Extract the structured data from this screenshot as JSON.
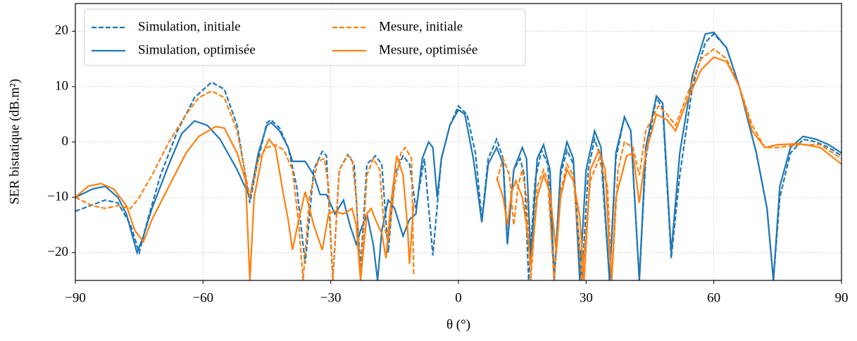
{
  "chart_data": {
    "type": "line",
    "xlabel": "θ (°)",
    "ylabel": "SER bistatique (dB.m²)",
    "xlim": [
      -90,
      90
    ],
    "ylim": [
      -25,
      25
    ],
    "xticks": [
      {
        "value": -90,
        "label": "−90"
      },
      {
        "value": -60,
        "label": "−60"
      },
      {
        "value": -30,
        "label": "−30"
      },
      0,
      30,
      60,
      90
    ],
    "yticks": [
      {
        "value": -20,
        "label": "−20"
      },
      {
        "value": -10,
        "label": "−10"
      },
      0,
      10,
      20
    ],
    "grid": true,
    "legend": "upper left",
    "series": [
      {
        "name": "Simulation, initiale",
        "color": "#1f77b4",
        "linestyle": "dashed",
        "x": [
          -90,
          -83,
          -80,
          -77,
          -75,
          -73,
          -70,
          -66,
          -62,
          -58,
          -55,
          -52,
          -49,
          -47,
          -45,
          -44,
          -42,
          -40,
          -38,
          -36,
          -34,
          -32,
          -31,
          -29.5,
          -28,
          -26,
          -24.5,
          -23,
          -21.5,
          -19.5,
          -18,
          -16.5,
          -15,
          -13,
          -11.5,
          -10,
          -8,
          -6,
          -4,
          -2,
          0,
          2,
          4,
          5.5,
          7,
          9,
          10.5,
          11.5,
          13,
          14.5,
          15.5,
          16.5,
          18,
          19.5,
          21,
          22.5,
          24,
          25.5,
          27,
          29,
          30.5,
          32,
          33.5,
          35.5,
          37,
          39,
          40.5,
          42.5,
          44,
          46.5,
          48,
          50,
          52,
          55,
          58,
          60,
          63,
          66,
          70,
          72.5,
          74,
          75.5,
          78,
          81,
          84,
          87,
          90
        ],
        "values": [
          -12.5,
          -10.5,
          -11,
          -15,
          -20,
          -14,
          -6,
          2,
          8,
          10.8,
          9.5,
          3,
          -11,
          -3,
          3.5,
          4,
          2.5,
          -1,
          -8,
          -22,
          -5,
          -1.7,
          -2.5,
          -25,
          -5,
          -2.3,
          -4,
          -23,
          -4,
          -2.5,
          -4,
          -20,
          -6,
          -2.5,
          -4,
          -12,
          -3,
          -20.5,
          -3,
          3,
          6.5,
          5,
          -2,
          -14,
          -3,
          0.5,
          -3,
          -18,
          -5,
          -3,
          -6,
          -25,
          -7,
          -1.5,
          -4,
          -25,
          -6,
          -1.5,
          -4,
          -25,
          -5,
          0.5,
          -3,
          -25,
          -3,
          4.5,
          2,
          -25,
          -3,
          8,
          6,
          -21,
          -6,
          10,
          18,
          19.5,
          17,
          10,
          -2,
          -12,
          -25,
          -10,
          -2,
          0.5,
          0,
          -1,
          -2.5
        ]
      },
      {
        "name": "Simulation, optimisée",
        "color": "#1f77b4",
        "linestyle": "solid",
        "x": [
          -90,
          -86,
          -83,
          -80,
          -78,
          -75.5,
          -74,
          -72,
          -68,
          -65,
          -62,
          -59,
          -56,
          -52,
          -49,
          -47,
          -45,
          -44,
          -42,
          -40,
          -39,
          -36,
          -34,
          -32.5,
          -31,
          -29,
          -27,
          -25.5,
          -24,
          -23,
          -21.5,
          -20,
          -19,
          -18,
          -16.5,
          -15,
          -13,
          -11.5,
          -10,
          -8.5,
          -7,
          -6,
          -5,
          -4,
          -2,
          0,
          1.5,
          3.5,
          5.5,
          7,
          9,
          10.5,
          11.5,
          13,
          15,
          16,
          17,
          18.5,
          20,
          21.5,
          22.5,
          24,
          25.5,
          27,
          28.5,
          30,
          32,
          33.5,
          35.5,
          37,
          39,
          40.5,
          42.5,
          44,
          46.5,
          48,
          50,
          52,
          55,
          58,
          60,
          63,
          66,
          70,
          72.5,
          74,
          75.5,
          78,
          81,
          84,
          87,
          90
        ],
        "values": [
          -10,
          -8.5,
          -8,
          -10,
          -13,
          -20,
          -17,
          -12,
          -4,
          1.5,
          3.8,
          3,
          0.5,
          -5,
          -10,
          -2,
          3,
          3.5,
          2,
          -1,
          -3.5,
          -3.5,
          -6,
          -9.5,
          -9.5,
          -13,
          -10.5,
          -15,
          -18.5,
          -16,
          -13,
          -18.5,
          -25,
          -16,
          -10.5,
          -12,
          -17,
          -14,
          -13,
          -3,
          0,
          -1,
          -10,
          -3,
          3,
          5.8,
          5,
          -3,
          -14.5,
          -4,
          -1,
          -4,
          -18.5,
          -5,
          -1,
          -3,
          -21,
          -3,
          -0.5,
          -5,
          -25,
          -5,
          0,
          -3,
          -25,
          -5,
          2,
          -1,
          -25,
          -2,
          4.5,
          2,
          -25,
          -1,
          8.3,
          7,
          -20,
          -2,
          12,
          19.5,
          19.8,
          17,
          10,
          -2,
          -12,
          -25,
          -8,
          -1,
          1,
          0.5,
          -0.5,
          -2
        ]
      },
      {
        "name": "Mesure, initiale",
        "color": "#ff7f0e",
        "linestyle": "dashed",
        "x": [
          -90,
          -86,
          -83,
          -80,
          -77,
          -75,
          -72,
          -68,
          -64,
          -61,
          -58,
          -55,
          -52,
          -49,
          -47,
          -45,
          -43,
          -41,
          -39,
          -37.5,
          -36.5,
          -35,
          -33,
          -31.5,
          -30.5,
          -29.5,
          -28,
          -26,
          -25,
          -24,
          -23,
          -21.5,
          -20,
          -18.5,
          -17.5,
          -16.5,
          -15,
          -13.5,
          -12.5,
          -11,
          -10.5,
          0,
          9,
          10.5,
          12,
          13,
          14,
          15,
          16,
          17,
          18.5,
          20,
          21,
          22.5,
          24,
          25.5,
          27,
          29,
          31,
          33,
          35,
          36,
          37.5,
          39,
          41,
          42.5,
          44,
          47,
          49,
          51,
          54,
          57,
          60,
          63,
          66,
          69,
          72,
          75,
          80,
          85,
          90
        ],
        "values": [
          -10,
          -11.5,
          -12,
          -11.5,
          -12,
          -10,
          -6,
          0,
          5,
          8,
          9.2,
          8,
          2,
          -10,
          -3,
          -1,
          -0.5,
          -1.5,
          -5,
          -15,
          -25,
          -10,
          -3.5,
          -3,
          -8,
          -25,
          -5,
          -2.5,
          -3,
          -10,
          -25,
          -6,
          -3,
          -5,
          -15,
          -18,
          -8,
          -2,
          -1,
          -3,
          -24,
          null,
          -7,
          -3,
          -6,
          -15,
          -8,
          -5,
          -10,
          -25,
          -8,
          -5,
          -7,
          -25,
          -9,
          -4,
          -6,
          -25,
          -7,
          -3,
          -8,
          -25,
          -5,
          0,
          -1,
          -6,
          2,
          6.5,
          5,
          3,
          9,
          15,
          16.8,
          15,
          10,
          3,
          -1,
          -1,
          -0.5,
          -0.5,
          -3
        ]
      },
      {
        "name": "Mesure, optimisée",
        "color": "#ff7f0e",
        "linestyle": "solid",
        "x": [
          -90,
          -87,
          -84,
          -81,
          -78,
          -76,
          -74,
          -72,
          -68,
          -64,
          -61,
          -57,
          -55,
          -52,
          -50,
          -49,
          -48,
          -46,
          -44.5,
          -43,
          -41,
          -40,
          -39,
          -37.5,
          -36,
          -34,
          -32,
          -30.5,
          -29,
          -27,
          -25,
          -24,
          -23,
          -21.5,
          -20.5,
          -19.5,
          -18,
          -17,
          -16,
          -14.5,
          -13,
          -12,
          -11.5,
          -10.5,
          0,
          9,
          10.5,
          11.5,
          12.5,
          13.5,
          15,
          16,
          17,
          18.5,
          20,
          21.5,
          23,
          24,
          25.5,
          27,
          28.5,
          29.5,
          31,
          33,
          34.5,
          35.5,
          36,
          37,
          39.5,
          41,
          42.5,
          44,
          46.5,
          49,
          51,
          54,
          57,
          60,
          63,
          66,
          69,
          72,
          75,
          80,
          85,
          90
        ],
        "values": [
          -10,
          -8,
          -7.5,
          -8.5,
          -11.5,
          -16,
          -18,
          -14,
          -8,
          -2,
          1,
          2.8,
          2.5,
          -2,
          -7,
          -25,
          -10,
          -2,
          0.5,
          -1,
          -10,
          -14,
          -19.5,
          -14,
          -9,
          -15,
          -19.5,
          -13,
          -12.5,
          -13,
          -12,
          -15,
          -25,
          -13,
          -12,
          -14,
          -16.5,
          -21,
          -12,
          -2.5,
          -6,
          -15,
          -22,
          -11,
          null,
          -6.5,
          -10,
          -15,
          -9,
          -7,
          -10,
          -15,
          -22.5,
          -10,
          -6,
          -9,
          -20,
          -10,
          -5,
          -7,
          -13.5,
          -25,
          -5,
          -1.5,
          -5,
          -20,
          -25,
          -10,
          -2.5,
          -2,
          -11,
          -2,
          5,
          4,
          2,
          8,
          13,
          15.3,
          14.5,
          10,
          2,
          -1,
          -0.5,
          -0.3,
          -1,
          -4
        ]
      }
    ]
  }
}
